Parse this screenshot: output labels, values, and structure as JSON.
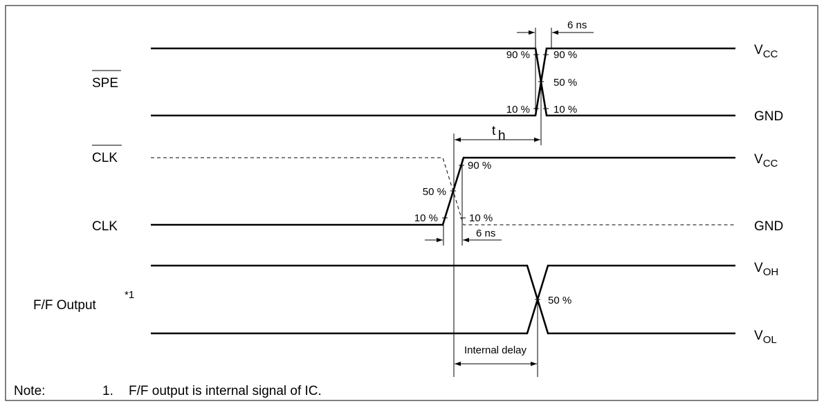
{
  "signals": {
    "spe": "SPE",
    "clk_bar": "CLK",
    "clk": "CLK",
    "ff_output": "F/F Output",
    "ff_footnote_mark": "*1"
  },
  "levels": {
    "vcc_main": "V",
    "vcc_sub": "CC",
    "gnd": "GND",
    "voh_main": "V",
    "voh_sub": "OH",
    "vol_main": "V",
    "vol_sub": "OL"
  },
  "percent": {
    "p90": "90 %",
    "p50": "50 %",
    "p10": "10 %"
  },
  "timing": {
    "rise_fall_spe": "6 ns",
    "rise_fall_clk": "6 ns",
    "th_main": "t",
    "th_sub": "h",
    "internal_delay": "Internal delay"
  },
  "note": {
    "label": "Note:",
    "number": "1.",
    "text": "F/F output is internal signal of IC."
  }
}
